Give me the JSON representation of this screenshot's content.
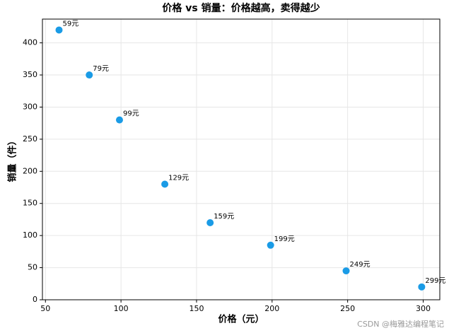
{
  "chart_data": {
    "type": "scatter",
    "title": "价格 vs 销量：价格越高，卖得越少",
    "xlabel": "价格（元）",
    "ylabel": "销量（件）",
    "series": [
      {
        "x": [
          59,
          79,
          99,
          129,
          159,
          199,
          249,
          299
        ],
        "values": [
          420,
          350,
          280,
          180,
          120,
          85,
          45,
          20
        ],
        "point_labels": [
          "59元",
          "79元",
          "99元",
          "129元",
          "159元",
          "199元",
          "249元",
          "299元"
        ],
        "color": "#1a9be6"
      }
    ],
    "xlim": [
      48,
      311
    ],
    "ylim": [
      0,
      437
    ],
    "xticks": [
      50,
      100,
      150,
      200,
      250,
      300
    ],
    "yticks": [
      0,
      50,
      100,
      150,
      200,
      250,
      300,
      350,
      400
    ],
    "grid": true,
    "watermark": "CSDN @梅雅达编程笔记"
  }
}
